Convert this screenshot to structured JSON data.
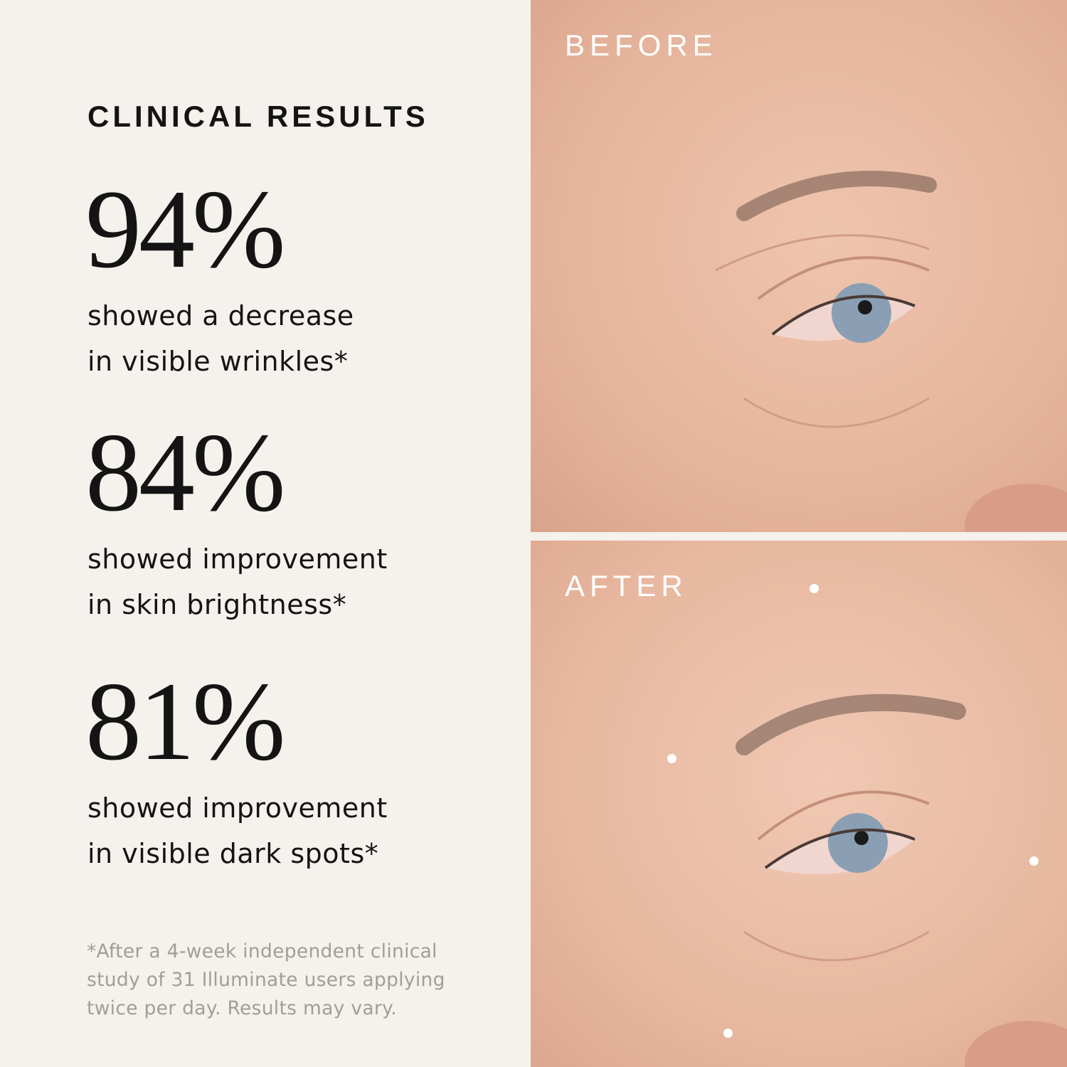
{
  "title": "CLINICAL RESULTS",
  "stats": [
    {
      "value": "94%",
      "line1": "showed a decrease",
      "line2": "in visible wrinkles*"
    },
    {
      "value": "84%",
      "line1": "showed improvement",
      "line2": "in skin brightness*"
    },
    {
      "value": "81%",
      "line1": "showed improvement",
      "line2": "in visible dark spots*"
    }
  ],
  "footnote": {
    "line1": "*After a 4-week independent clinical",
    "line2": "study of 31 Illuminate users applying",
    "line3": "twice per day. Results may vary."
  },
  "photos": {
    "before_label": "BEFORE",
    "after_label": "AFTER"
  },
  "colors": {
    "background": "#f5f1ec",
    "text": "#141414",
    "footnote": "#a19e9a",
    "skin": "#e9b9a0"
  }
}
